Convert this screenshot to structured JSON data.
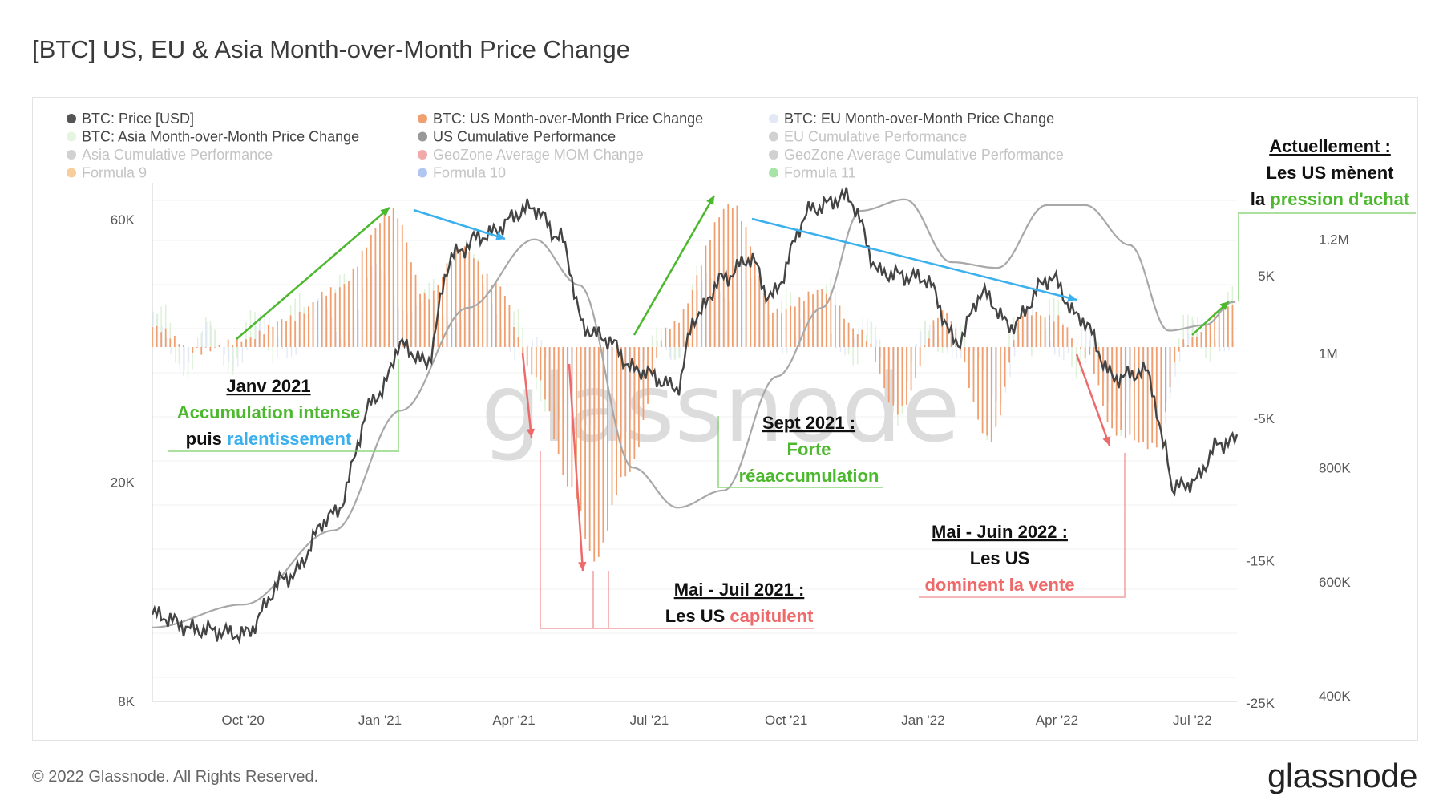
{
  "title": "[BTC] US, EU & Asia Month-over-Month Price Change",
  "footer": {
    "copyright": "© 2022 Glassnode. All Rights Reserved.",
    "logo": "glassnode"
  },
  "watermark": "glassnode",
  "colors": {
    "price": "#444444",
    "us": "#f0a070",
    "eu": "#dfe6f5",
    "asia": "#d6f0d0",
    "us_cum": "#a8a8a8",
    "green": "#4cb82e",
    "blue": "#3ab0ee",
    "red": "#ee6a6a"
  },
  "legend": [
    {
      "label": "BTC: Price [USD]",
      "color": "#555555",
      "muted": false
    },
    {
      "label": "BTC: US Month-over-Month Price Change",
      "color": "#f0a070",
      "muted": false
    },
    {
      "label": "BTC: EU Month-over-Month Price Change",
      "color": "#e2e8f4",
      "muted": false
    },
    {
      "label": "BTC: Asia Month-over-Month Price Change",
      "color": "#e6f5e0",
      "muted": false
    },
    {
      "label": "US Cumulative Performance",
      "color": "#999999",
      "muted": false
    },
    {
      "label": "EU Cumulative Performance",
      "color": "#cccccc",
      "muted": true
    },
    {
      "label": "Asia Cumulative Performance",
      "color": "#cccccc",
      "muted": true
    },
    {
      "label": "GeoZone Average MOM Change",
      "color": "#f0a0a0",
      "muted": true
    },
    {
      "label": "GeoZone Average Cumulative Performance",
      "color": "#cccccc",
      "muted": true
    },
    {
      "label": "Formula 9",
      "color": "#f5c890",
      "muted": true
    },
    {
      "label": "Formula 10",
      "color": "#a8c0f0",
      "muted": true
    },
    {
      "label": "Formula 11",
      "color": "#9ee09e",
      "muted": true
    }
  ],
  "annotations": {
    "jan2021": {
      "title": "Janv 2021",
      "line1": "Accumulation intense",
      "line2a": "puis ",
      "line2b": "ralentissement"
    },
    "sept2021": {
      "title": "Sept 2021 :",
      "line1": "Forte",
      "line2": "réaaccumulation"
    },
    "maijuil2021": {
      "title": "Mai - Juil 2021 :",
      "line2a": "Les US ",
      "line2b": "capitulent"
    },
    "maijuin2022": {
      "title": "Mai - Juin 2022 :",
      "line1": "Les US",
      "line2": "dominent la vente"
    },
    "current": {
      "title": "Actuellement :",
      "line1": "Les US mènent",
      "line2a": "la ",
      "line2b": "pression d'achat"
    }
  },
  "chart_data": {
    "type": "line",
    "x_ticks": [
      "Oct '20",
      "Jan '21",
      "Apr '21",
      "Jul '21",
      "Oct '21",
      "Jan '22",
      "Apr '22",
      "Jul '22"
    ],
    "y_left": {
      "label": "",
      "scale": "log",
      "ticks": [
        "60K",
        "20K",
        "8K"
      ],
      "range": [
        8000,
        70000
      ]
    },
    "y_mom": {
      "label": "",
      "ticks": [
        "5K",
        "-5K",
        "-15K",
        "-25K"
      ],
      "range": [
        -25000,
        10000
      ]
    },
    "y_cum": {
      "label": "",
      "ticks": [
        "1.2M",
        "1M",
        "800K",
        "600K",
        "400K"
      ],
      "range": [
        400000,
        1400000
      ]
    },
    "series": [
      {
        "name": "BTC: Price [USD]",
        "x": [
          "2020-08-01",
          "2020-09-01",
          "2020-10-01",
          "2020-11-01",
          "2020-12-01",
          "2021-01-01",
          "2021-01-15",
          "2021-02-01",
          "2021-02-20",
          "2021-03-10",
          "2021-04-14",
          "2021-05-01",
          "2021-05-19",
          "2021-06-01",
          "2021-06-22",
          "2021-07-20",
          "2021-08-01",
          "2021-08-20",
          "2021-09-07",
          "2021-09-20",
          "2021-10-20",
          "2021-11-10",
          "2021-12-04",
          "2022-01-01",
          "2022-01-24",
          "2022-02-10",
          "2022-03-01",
          "2022-03-28",
          "2022-04-15",
          "2022-05-10",
          "2022-05-31",
          "2022-06-13",
          "2022-06-18",
          "2022-07-01",
          "2022-07-20",
          "2022-07-28"
        ],
        "values": [
          11500,
          10800,
          10600,
          13500,
          17500,
          29000,
          35500,
          33000,
          52000,
          56000,
          63000,
          56000,
          38000,
          36500,
          32000,
          29800,
          40000,
          47000,
          51000,
          43500,
          63000,
          66000,
          48000,
          47000,
          36000,
          44000,
          38500,
          47000,
          40000,
          31000,
          31800,
          23000,
          19500,
          20000,
          23500,
          23800
        ]
      },
      {
        "name": "BTC: US Month-over-Month Price Change",
        "x": [
          "2020-08-01",
          "2020-09-01",
          "2020-10-01",
          "2020-11-01",
          "2020-12-01",
          "2021-01-10",
          "2021-02-01",
          "2021-02-25",
          "2021-03-20",
          "2021-04-15",
          "2021-05-10",
          "2021-05-25",
          "2021-06-15",
          "2021-07-15",
          "2021-08-25",
          "2021-09-25",
          "2021-10-25",
          "2021-11-20",
          "2021-12-15",
          "2022-01-15",
          "2022-02-15",
          "2022-03-10",
          "2022-04-01",
          "2022-04-20",
          "2022-05-10",
          "2022-06-05",
          "2022-06-25",
          "2022-07-28"
        ],
        "values": [
          1400,
          -300,
          500,
          2000,
          4000,
          9500,
          3500,
          7000,
          4500,
          -2000,
          -10000,
          -15000,
          -9000,
          1500,
          10000,
          2500,
          4000,
          1000,
          -4500,
          2500,
          -6500,
          2500,
          2000,
          -500,
          -6000,
          -7000,
          300,
          3000
        ]
      },
      {
        "name": "US Cumulative Performance",
        "x": [
          "2020-08-01",
          "2020-10-01",
          "2020-12-01",
          "2021-01-15",
          "2021-03-01",
          "2021-04-15",
          "2021-05-15",
          "2021-06-20",
          "2021-07-20",
          "2021-08-20",
          "2021-09-25",
          "2021-10-25",
          "2021-11-20",
          "2021-12-20",
          "2022-01-20",
          "2022-02-20",
          "2022-03-25",
          "2022-04-20",
          "2022-05-20",
          "2022-06-15",
          "2022-07-10",
          "2022-07-28"
        ],
        "values": [
          520000,
          560000,
          690000,
          900000,
          1080000,
          1200000,
          1120000,
          800000,
          730000,
          760000,
          960000,
          1080000,
          1250000,
          1270000,
          1160000,
          1150000,
          1260000,
          1260000,
          1190000,
          1040000,
          1050000,
          1090000
        ]
      }
    ],
    "annotations_text": [
      "Janv 2021",
      "Sept 2021 :",
      "Mai - Juil 2021 :",
      "Mai - Juin 2022 :",
      "Actuellement :"
    ]
  }
}
